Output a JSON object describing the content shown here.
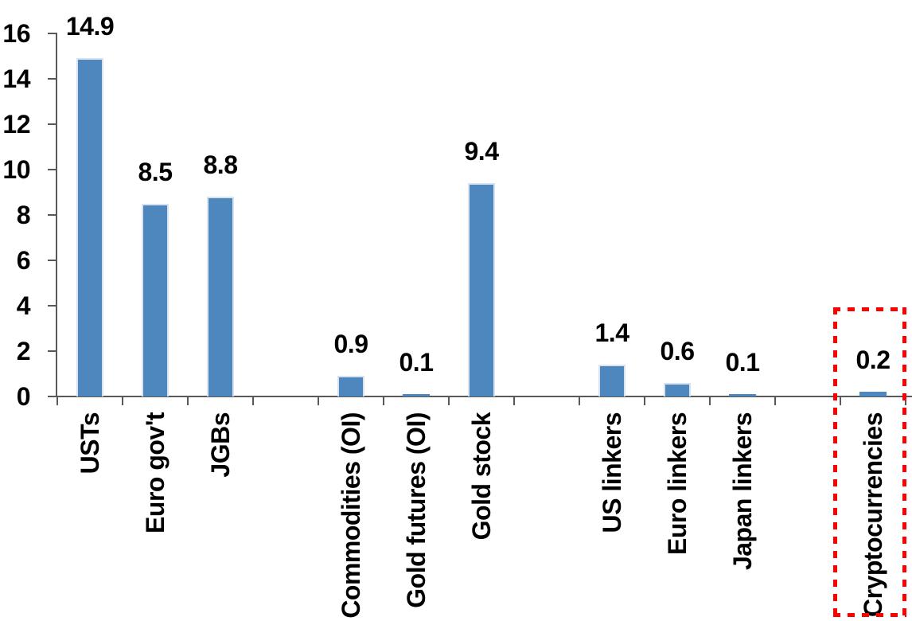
{
  "chart_data": {
    "type": "bar",
    "title": "",
    "xlabel": "",
    "ylabel": "",
    "categories": [
      "USTs",
      "Euro gov't",
      "JGBs",
      "",
      "Commodities (OI)",
      "Gold futures (OI)",
      "Gold stock",
      "",
      "US linkers",
      "Euro linkers",
      "Japan linkers",
      "",
      "Cryptocurrencies"
    ],
    "values": [
      14.9,
      8.5,
      8.8,
      null,
      0.9,
      0.1,
      9.4,
      null,
      1.4,
      0.6,
      0.1,
      null,
      0.2
    ],
    "value_labels": [
      "14.9",
      "8.5",
      "8.8",
      "",
      "0.9",
      "0.1",
      "9.4",
      "",
      "1.4",
      "0.6",
      "0.1",
      "",
      "0.2"
    ],
    "ylim": [
      0,
      16
    ],
    "yticks": [
      0,
      2,
      4,
      6,
      8,
      10,
      12,
      14,
      16
    ],
    "grid": false,
    "legend": false,
    "colors": {
      "bar_fill": "#4E86BE",
      "bar_edge": "#D8E2F0",
      "axis": "#595959",
      "text": "#000000",
      "highlight_box": "#FF0000"
    },
    "highlight": {
      "category": "Cryptocurrencies",
      "category_index": 12,
      "style": "dotted-red-box"
    }
  }
}
